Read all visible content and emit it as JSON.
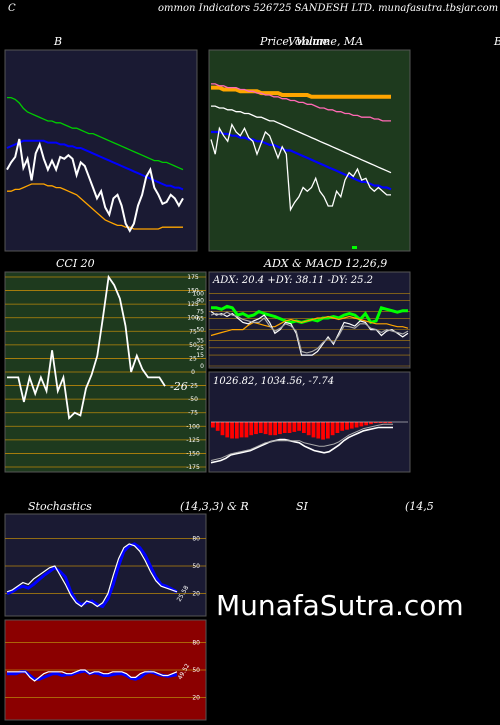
{
  "header": {
    "left_letter": "C",
    "title": "ommon  Indicators 526725 SANDESH LTD.  munafasutra.tbsjar.com",
    "right_letter": "C"
  },
  "panel_titles": {
    "bb": "B",
    "price": "Price,  Volume,  MA",
    "overlay": "Volume",
    "right_cut": "B",
    "cci": "CCI 20",
    "adx_macd": "ADX  & MACD 12,26,9",
    "stoch_left": "Stochastics",
    "stoch_params": "(14,3,3) & R",
    "rsi": "SI",
    "rsi_params": "(14,5"
  },
  "watermark": "MunafaSutra.com",
  "colors": {
    "navy_bg": "#1a1a33",
    "green_bg": "#1e3a1e",
    "red_bg": "#8b0000",
    "grid": "#b8860b",
    "blue": "#0000ff",
    "green": "#00cc00",
    "orange": "#ffa500",
    "white": "#ffffff"
  },
  "chart_data": [
    {
      "id": "bb",
      "type": "line",
      "title": "B",
      "series": [
        {
          "color": "#00cc00",
          "values": [
            78,
            78,
            77,
            75,
            72,
            70,
            69,
            68,
            67,
            66,
            65,
            65,
            64,
            64,
            63,
            62,
            61,
            61,
            60,
            59,
            58,
            58,
            57,
            56,
            55,
            54,
            53,
            52,
            51,
            50,
            49,
            48,
            47,
            46,
            45,
            44,
            43,
            43,
            42,
            42,
            41,
            40,
            39,
            38
          ]
        },
        {
          "color": "#0000ff",
          "values": [
            50,
            51,
            52,
            53,
            54,
            54,
            54,
            54,
            54,
            54,
            53,
            53,
            53,
            52,
            52,
            51,
            51,
            50,
            50,
            49,
            48,
            47,
            46,
            45,
            44,
            43,
            42,
            41,
            40,
            39,
            38,
            37,
            36,
            35,
            34,
            33,
            32,
            31,
            30,
            29,
            29,
            28,
            28,
            27
          ]
        },
        {
          "color": "#ffa500",
          "values": [
            26,
            26,
            27,
            27,
            28,
            29,
            30,
            30,
            30,
            30,
            29,
            29,
            28,
            28,
            27,
            26,
            25,
            24,
            22,
            20,
            18,
            16,
            14,
            12,
            10,
            9,
            8,
            7,
            7,
            6,
            6,
            5,
            5,
            5,
            5,
            5,
            5,
            5,
            6,
            6,
            6,
            6,
            6,
            6
          ]
        },
        {
          "color": "#ffffff",
          "values": [
            38,
            42,
            45,
            55,
            39,
            44,
            32,
            47,
            52,
            44,
            38,
            43,
            38,
            45,
            44,
            46,
            44,
            35,
            42,
            40,
            34,
            28,
            22,
            26,
            17,
            13,
            22,
            24,
            18,
            8,
            4,
            8,
            18,
            24,
            34,
            38,
            28,
            24,
            19,
            20,
            24,
            22,
            18,
            22
          ]
        }
      ]
    },
    {
      "id": "price",
      "type": "line",
      "title": "Price,  Volume,  MA",
      "series": [
        {
          "color": "#ffa500",
          "values": [
            84,
            84,
            84,
            83,
            83,
            83,
            83,
            82,
            82,
            82,
            82,
            82,
            81,
            81,
            81,
            81,
            81,
            80,
            80,
            80,
            80,
            80,
            80,
            80,
            79,
            79,
            79,
            79,
            79,
            79,
            79,
            79,
            79,
            79,
            79,
            79,
            79,
            79,
            79,
            79,
            79,
            79,
            79,
            79
          ]
        },
        {
          "color": "#ff69b4",
          "values": [
            86,
            86,
            85,
            85,
            84,
            84,
            84,
            83,
            83,
            82,
            82,
            81,
            81,
            80,
            80,
            79,
            79,
            78,
            78,
            77,
            77,
            76,
            76,
            75,
            75,
            74,
            73,
            73,
            72,
            72,
            71,
            71,
            70,
            70,
            69,
            69,
            68,
            68,
            68,
            67,
            67,
            66,
            66,
            66
          ]
        },
        {
          "color": "#ffffff",
          "values": [
            74,
            74,
            73,
            73,
            72,
            72,
            71,
            71,
            70,
            70,
            69,
            68,
            68,
            67,
            66,
            66,
            65,
            64,
            63,
            62,
            61,
            60,
            59,
            58,
            57,
            56,
            55,
            54,
            53,
            52,
            51,
            50,
            49,
            48,
            47,
            46,
            45,
            44,
            43,
            42,
            41,
            40,
            39,
            38
          ]
        },
        {
          "color": "#0000ff",
          "values": [
            60,
            60,
            60,
            59,
            59,
            58,
            58,
            57,
            57,
            56,
            56,
            55,
            55,
            54,
            53,
            53,
            52,
            51,
            50,
            50,
            49,
            48,
            47,
            46,
            45,
            44,
            43,
            42,
            41,
            40,
            39,
            38,
            37,
            36,
            35,
            34,
            33,
            33,
            32,
            31,
            31,
            30,
            30,
            29
          ]
        },
        {
          "color": "#ffffff",
          "values": [
            56,
            48,
            62,
            58,
            55,
            64,
            60,
            58,
            62,
            57,
            55,
            48,
            54,
            60,
            58,
            52,
            46,
            52,
            48,
            18,
            22,
            25,
            30,
            28,
            30,
            35,
            28,
            25,
            20,
            20,
            28,
            25,
            34,
            38,
            36,
            40,
            34,
            35,
            30,
            28,
            30,
            28,
            26,
            26
          ]
        }
      ]
    },
    {
      "id": "cci",
      "type": "line",
      "title": "CCI 20",
      "ylim": [
        -175,
        175
      ],
      "ticks": [
        175,
        150,
        125,
        100,
        75,
        50,
        25,
        0,
        -25,
        -50,
        -75,
        -100,
        -125,
        -150,
        -175
      ],
      "last_label": "-26",
      "values": [
        -10,
        -10,
        -10,
        -55,
        -10,
        -40,
        -10,
        -35,
        40,
        -35,
        -10,
        -85,
        -75,
        -80,
        -30,
        -5,
        30,
        100,
        175,
        160,
        135,
        85,
        0,
        30,
        5,
        -10,
        -10,
        -10,
        -26
      ]
    },
    {
      "id": "adx",
      "type": "line",
      "title": "ADX  & MACD 12,26,9",
      "label": "ADX: 20.4  +DY: 38.11 -DY: 25.2",
      "ticks": [
        100,
        90,
        75,
        65,
        50,
        35,
        25,
        15,
        0
      ],
      "series": [
        {
          "color": "#00ff00",
          "values": [
            80,
            80,
            78,
            82,
            80,
            70,
            72,
            68,
            70,
            75,
            72,
            70,
            68,
            65,
            62,
            60,
            62,
            60,
            62,
            64,
            62,
            66,
            66,
            68,
            66,
            70,
            72,
            70,
            64,
            72,
            60,
            62,
            80,
            78,
            76,
            74,
            76,
            76
          ]
        },
        {
          "color": "#ffa500",
          "values": [
            42,
            44,
            46,
            48,
            50,
            50,
            50,
            56,
            60,
            58,
            56,
            54,
            54,
            58,
            62,
            64,
            62,
            60,
            62,
            64,
            66,
            66,
            68,
            66,
            64,
            66,
            68,
            66,
            64,
            62,
            60,
            58,
            58,
            58,
            56,
            54,
            54,
            52
          ]
        },
        {
          "color": "#ffffff",
          "values": [
            75,
            70,
            72,
            68,
            72,
            66,
            60,
            58,
            62,
            65,
            70,
            60,
            45,
            50,
            60,
            58,
            45,
            15,
            15,
            15,
            20,
            30,
            40,
            30,
            45,
            60,
            58,
            55,
            62,
            60,
            50,
            50,
            42,
            48,
            50,
            45,
            40,
            45
          ]
        },
        {
          "color": "#aaaaaa",
          "values": [
            70,
            72,
            70,
            74,
            70,
            68,
            64,
            62,
            60,
            60,
            66,
            55,
            48,
            52,
            58,
            55,
            48,
            20,
            18,
            20,
            24,
            32,
            38,
            32,
            42,
            55,
            54,
            52,
            58,
            58,
            52,
            50,
            46,
            50,
            48,
            46,
            44,
            48
          ]
        }
      ]
    },
    {
      "id": "macd",
      "type": "bar+line",
      "label": "1026.82,  1034.56,  -7.74",
      "hist": [
        -5,
        -8,
        -12,
        -14,
        -15,
        -15,
        -14,
        -14,
        -12,
        -11,
        -10,
        -11,
        -12,
        -12,
        -11,
        -10,
        -10,
        -9,
        -8,
        -10,
        -12,
        -14,
        -15,
        -16,
        -15,
        -12,
        -10,
        -8,
        -7,
        -6,
        -5,
        -4,
        -3,
        -2,
        -1,
        -1,
        -1,
        -1
      ],
      "macd": [
        -37,
        -36,
        -35,
        -33,
        -30,
        -29,
        -28,
        -27,
        -26,
        -24,
        -22,
        -20,
        -18,
        -17,
        -16,
        -16,
        -17,
        -18,
        -19,
        -22,
        -24,
        -26,
        -27,
        -28,
        -27,
        -24,
        -21,
        -17,
        -14,
        -12,
        -10,
        -8,
        -7,
        -6,
        -5,
        -5,
        -5,
        -5
      ],
      "signal": [
        -35,
        -34,
        -33,
        -31,
        -29,
        -28,
        -27,
        -26,
        -25,
        -23,
        -21,
        -19,
        -18,
        -17,
        -17,
        -17,
        -17,
        -17,
        -17,
        -19,
        -20,
        -21,
        -22,
        -22,
        -21,
        -20,
        -18,
        -15,
        -12,
        -10,
        -8,
        -6,
        -5,
        -4,
        -3,
        -2,
        -2,
        -2
      ]
    },
    {
      "id": "stoch",
      "type": "line",
      "ticks": [
        80,
        50,
        20
      ],
      "last_label": "25.58",
      "series": [
        {
          "color": "#0000ff",
          "values": [
            20,
            22,
            26,
            28,
            26,
            30,
            35,
            40,
            44,
            48,
            44,
            38,
            22,
            12,
            8,
            10,
            12,
            8,
            6,
            14,
            30,
            50,
            66,
            72,
            74,
            70,
            62,
            50,
            38,
            30,
            28,
            25,
            22
          ]
        },
        {
          "color": "#ffffff",
          "values": [
            22,
            24,
            28,
            32,
            30,
            36,
            40,
            44,
            48,
            50,
            40,
            30,
            18,
            10,
            6,
            12,
            10,
            6,
            10,
            20,
            40,
            58,
            70,
            74,
            72,
            66,
            56,
            44,
            34,
            28,
            26,
            24,
            22
          ]
        }
      ]
    },
    {
      "id": "rsi",
      "type": "line",
      "ticks": [
        80,
        50,
        20
      ],
      "last_label": "49.52",
      "series": [
        {
          "color": "#0000ff",
          "values": [
            46,
            46,
            46,
            48,
            48,
            44,
            40,
            40,
            42,
            44,
            46,
            46,
            44,
            45,
            45,
            47,
            48,
            49,
            46,
            47,
            46,
            44,
            44,
            45,
            46,
            46,
            44,
            41,
            40,
            42,
            46,
            48,
            47,
            45,
            44,
            43,
            44,
            45
          ]
        },
        {
          "color": "#ffffff",
          "values": [
            48,
            48,
            48,
            48,
            48,
            42,
            38,
            42,
            46,
            48,
            48,
            48,
            48,
            46,
            46,
            48,
            50,
            50,
            46,
            48,
            48,
            46,
            46,
            48,
            48,
            48,
            46,
            42,
            42,
            46,
            48,
            48,
            48,
            46,
            44,
            44,
            46,
            48
          ]
        }
      ]
    }
  ]
}
